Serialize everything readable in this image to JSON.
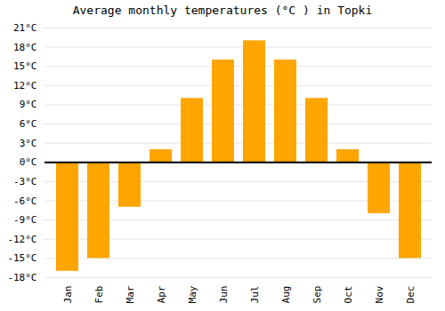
{
  "chart_data": {
    "type": "bar",
    "title": "Average monthly temperatures (°C ) in Topki",
    "categories": [
      "Jan",
      "Feb",
      "Mar",
      "Apr",
      "May",
      "Jun",
      "Jul",
      "Aug",
      "Sep",
      "Oct",
      "Nov",
      "Dec"
    ],
    "values": [
      -17,
      -15,
      -7,
      2,
      10,
      16,
      19,
      16,
      10,
      2,
      -8,
      -15
    ],
    "color": "#FFA500",
    "ylim": [
      -18,
      21
    ],
    "yticks": [
      {
        "value": -18,
        "label": "-18°C"
      },
      {
        "value": -15,
        "label": "-15°C"
      },
      {
        "value": -12,
        "label": "-12°C"
      },
      {
        "value": -9,
        "label": "-9°C"
      },
      {
        "value": -6,
        "label": "-6°C"
      },
      {
        "value": -3,
        "label": "-3°C"
      },
      {
        "value": 0,
        "label": "0°C"
      },
      {
        "value": 3,
        "label": "3°C"
      },
      {
        "value": 6,
        "label": "6°C"
      },
      {
        "value": 9,
        "label": "9°C"
      },
      {
        "value": 12,
        "label": "12°C"
      },
      {
        "value": 15,
        "label": "15°C"
      },
      {
        "value": 18,
        "label": "18°C"
      },
      {
        "value": 21,
        "label": "21°C"
      }
    ],
    "grid": true
  }
}
